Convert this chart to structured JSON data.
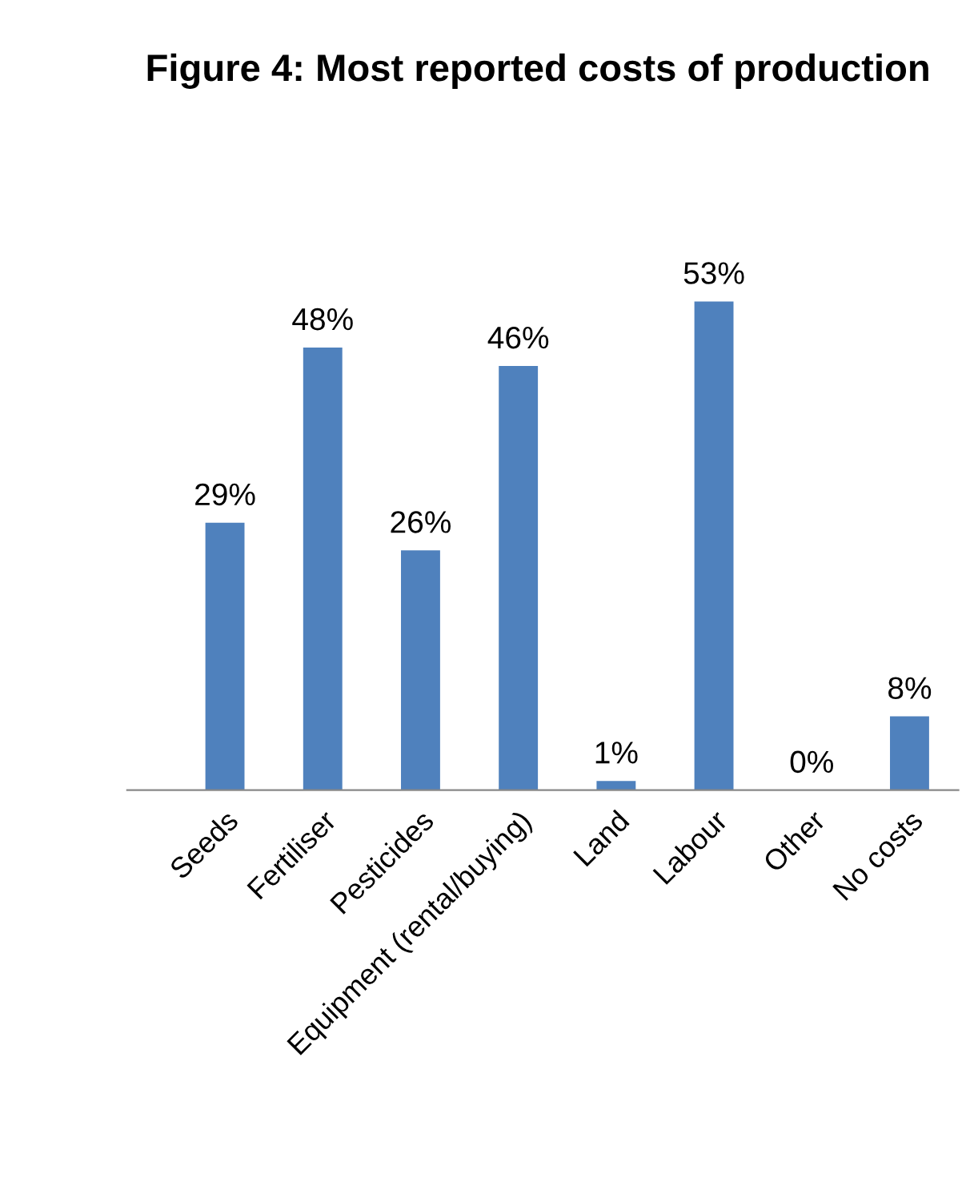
{
  "chart_data": {
    "type": "bar",
    "title": "Figure 4: Most reported costs of production",
    "categories": [
      "Seeds",
      "Fertiliser",
      "Pesticides",
      "Equipment (rental/buying)",
      "Land",
      "Labour",
      "Other",
      "No costs"
    ],
    "values": [
      29,
      48,
      26,
      46,
      1,
      53,
      0,
      8
    ],
    "value_labels": [
      "29%",
      "48%",
      "26%",
      "46%",
      "1%",
      "53%",
      "0%",
      "8%"
    ],
    "color": "#4f81bd"
  }
}
